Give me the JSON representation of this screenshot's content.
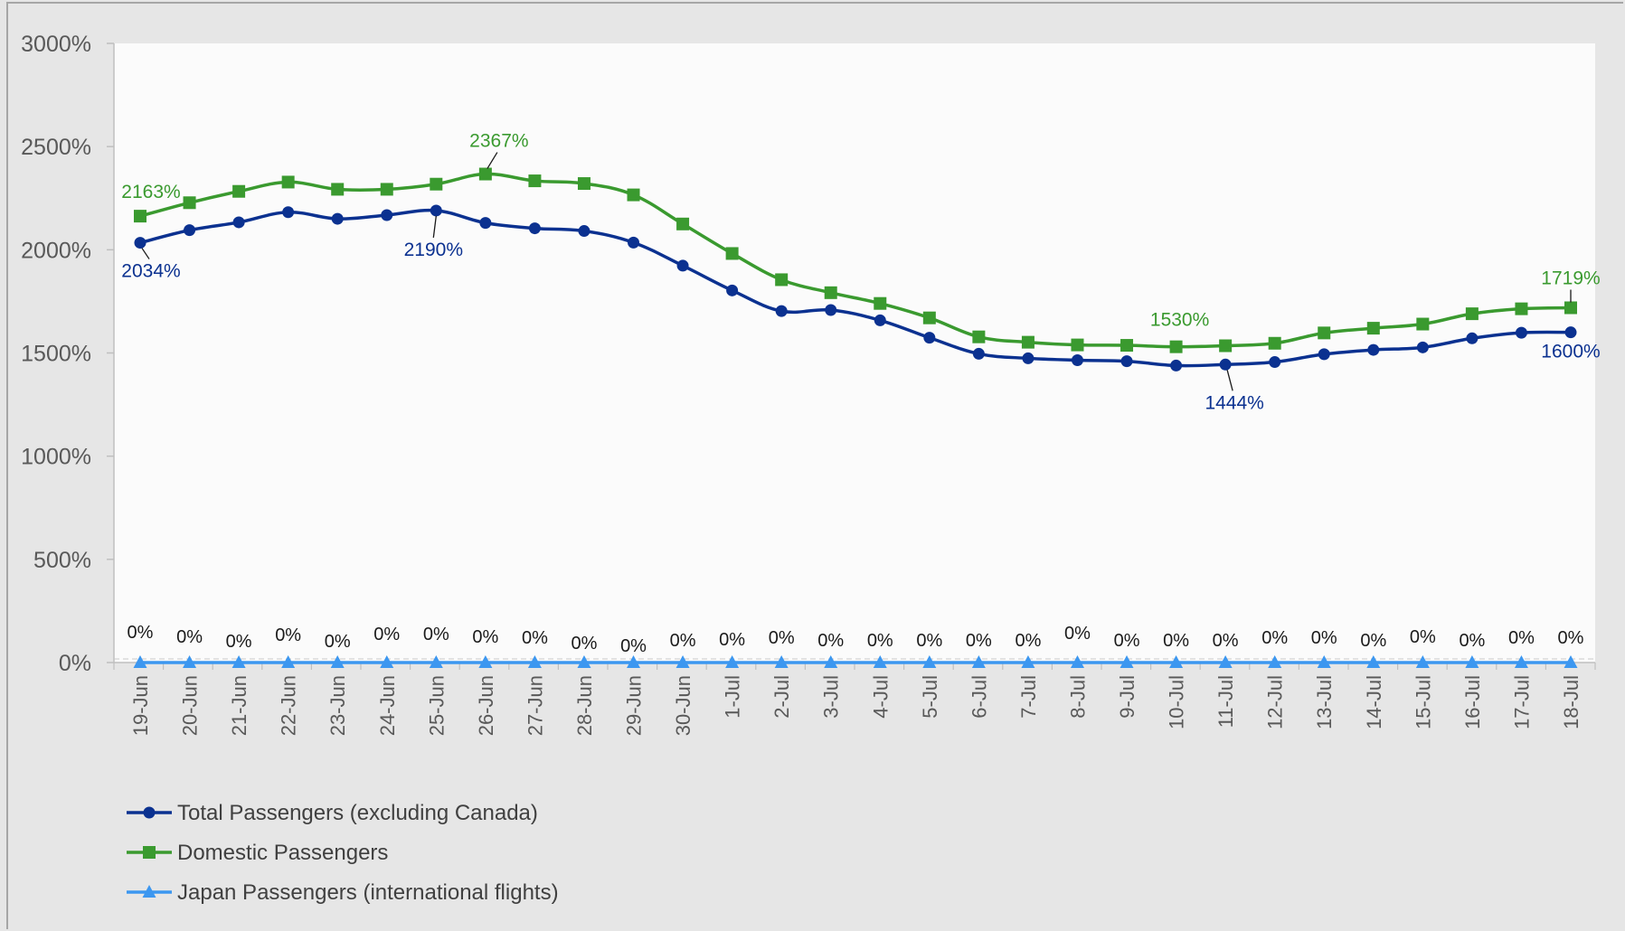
{
  "chart_data": {
    "type": "line",
    "title": "",
    "xlabel": "",
    "ylabel": "",
    "ylim": [
      0,
      3000
    ],
    "yticks": [
      "0%",
      "500%",
      "1000%",
      "1500%",
      "2000%",
      "2500%",
      "3000%"
    ],
    "y_tick_values": [
      0,
      500,
      1000,
      1500,
      2000,
      2500,
      3000
    ],
    "grid": false,
    "legend_position": "bottom-left",
    "categories": [
      "19-Jun",
      "20-Jun",
      "21-Jun",
      "22-Jun",
      "23-Jun",
      "24-Jun",
      "25-Jun",
      "26-Jun",
      "27-Jun",
      "28-Jun",
      "29-Jun",
      "30-Jun",
      "1-Jul",
      "2-Jul",
      "3-Jul",
      "4-Jul",
      "5-Jul",
      "6-Jul",
      "7-Jul",
      "8-Jul",
      "9-Jul",
      "10-Jul",
      "11-Jul",
      "12-Jul",
      "13-Jul",
      "14-Jul",
      "15-Jul",
      "16-Jul",
      "17-Jul",
      "18-Jul"
    ],
    "series": [
      {
        "name": "Total Passengers (excluding Canada)",
        "color": "#0b3190",
        "marker": "circle",
        "values": [
          2034,
          2095,
          2133,
          2182,
          2150,
          2168,
          2190,
          2130,
          2104,
          2091,
          2035,
          1923,
          1803,
          1703,
          1708,
          1658,
          1574,
          1496,
          1474,
          1465,
          1460,
          1439,
          1444,
          1456,
          1494,
          1515,
          1527,
          1571,
          1598,
          1600
        ],
        "callouts": [
          {
            "index": 0,
            "text": "2034%"
          },
          {
            "index": 6,
            "text": "2190%"
          },
          {
            "index": 22,
            "text": "1444%"
          },
          {
            "index": 29,
            "text": "1600%"
          }
        ]
      },
      {
        "name": "Domestic Passengers",
        "color": "#3a9a2f",
        "marker": "square",
        "values": [
          2163,
          2228,
          2283,
          2328,
          2293,
          2293,
          2318,
          2367,
          2334,
          2321,
          2266,
          2125,
          1982,
          1855,
          1792,
          1740,
          1670,
          1578,
          1552,
          1539,
          1537,
          1530,
          1535,
          1547,
          1597,
          1620,
          1640,
          1690,
          1714,
          1719
        ],
        "callouts": [
          {
            "index": 0,
            "text": "2163%"
          },
          {
            "index": 7,
            "text": "2367%"
          },
          {
            "index": 21,
            "text": "1530%"
          },
          {
            "index": 29,
            "text": "1719%"
          }
        ]
      },
      {
        "name": "Japan Passengers (international flights)",
        "color": "#3c97f0",
        "marker": "triangle",
        "values": [
          0,
          0,
          0,
          0,
          0,
          0,
          0,
          0,
          0,
          0,
          0,
          0,
          0,
          0,
          0,
          0,
          0,
          0,
          0,
          0,
          0,
          0,
          0,
          0,
          0,
          0,
          0,
          0,
          0,
          0
        ],
        "data_label": "0%"
      }
    ]
  }
}
